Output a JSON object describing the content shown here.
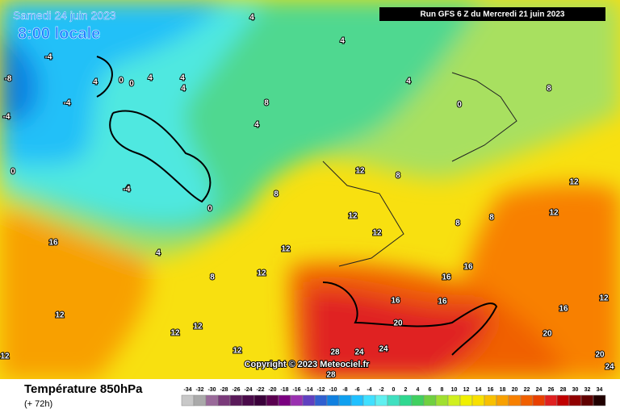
{
  "header": {
    "date": "Samedi 24 juin 2023",
    "time": "8:00 locale",
    "run": "Run GFS 6 Z du Mercredi 21 juin 2023",
    "copyright": "Copyright © 2023 Meteociel.fr"
  },
  "legend": {
    "title": "Température 850hPa",
    "lead": "(+ 72h)",
    "labels": [
      -34,
      -32,
      -30,
      -28,
      -26,
      -24,
      -22,
      -20,
      -18,
      -16,
      -14,
      -12,
      -10,
      -8,
      -6,
      -4,
      -2,
      0,
      2,
      4,
      6,
      8,
      10,
      12,
      14,
      16,
      18,
      20,
      22,
      24,
      26,
      28,
      30,
      32,
      34
    ],
    "colors": [
      "#c8c8c8",
      "#aaaaaa",
      "#9a6a9a",
      "#7a3a7a",
      "#5a1a5a",
      "#4a0a4a",
      "#3a003a",
      "#5a0050",
      "#7a0080",
      "#9a30b0",
      "#6040c0",
      "#3060d0",
      "#1080e0",
      "#10a0f0",
      "#20c0ff",
      "#40e0ff",
      "#60f0f0",
      "#40e0c0",
      "#30d890",
      "#40d060",
      "#70d040",
      "#a0e030",
      "#d0f020",
      "#f0f000",
      "#f8e000",
      "#f8c000",
      "#f8a000",
      "#f88000",
      "#f06000",
      "#e84000",
      "#e02020",
      "#c00000",
      "#900000",
      "#600000",
      "#200000"
    ]
  },
  "map": {
    "contour_labels": [
      4,
      4,
      4,
      4,
      4,
      4,
      4,
      4,
      4,
      4,
      0,
      0,
      0,
      0,
      0,
      -4,
      -4,
      -4,
      -4,
      -8,
      8,
      8,
      8,
      8,
      8,
      8,
      8,
      12,
      12,
      12,
      12,
      12,
      12,
      12,
      12,
      12,
      12,
      12,
      12,
      12,
      16,
      16,
      16,
      16,
      16,
      16,
      20,
      20,
      20,
      24,
      24,
      24,
      28,
      28
    ]
  }
}
